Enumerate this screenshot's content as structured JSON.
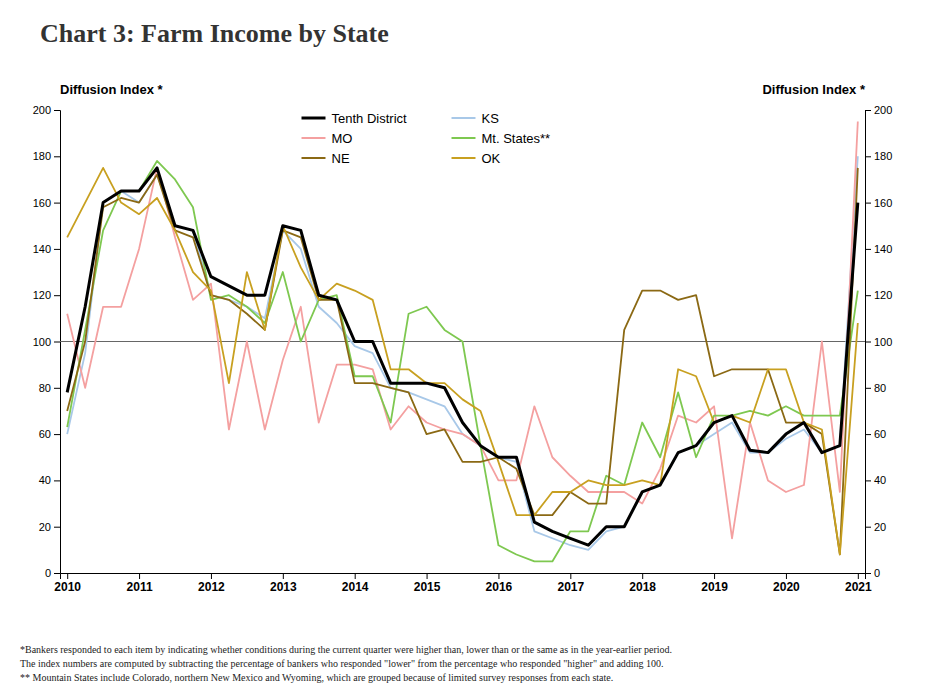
{
  "chart_data": {
    "type": "line",
    "title": "Chart 3: Farm Income by State",
    "ylabel": "Diffusion Index *",
    "y2label": "Diffusion Index *",
    "annotations": [
      "*Bankers responded to each item by indicating whether conditions during the current quarter were higher than, lower than or the same as in the year-earlier period.",
      "The index numbers are computed by subtracting the percentage of bankers who responded \"lower\" from the percentage who responded \"higher\" and adding 100.",
      "** Mountain States include Colorado, northern New Mexico and Wyoming, which are grouped because of limited survey responses from each state."
    ],
    "x": [
      2010,
      2010.25,
      2010.5,
      2010.75,
      2011,
      2011.25,
      2011.5,
      2011.75,
      2012,
      2012.25,
      2012.5,
      2012.75,
      2013,
      2013.25,
      2013.5,
      2013.75,
      2014,
      2014.25,
      2014.5,
      2014.75,
      2015,
      2015.25,
      2015.5,
      2015.75,
      2016,
      2016.25,
      2016.5,
      2016.75,
      2017,
      2017.25,
      2017.5,
      2017.75,
      2018,
      2018.25,
      2018.5,
      2018.75,
      2019,
      2019.25,
      2019.5,
      2019.75,
      2020,
      2020.25,
      2020.5,
      2020.75,
      2021
    ],
    "xlim": [
      2009.9,
      2021.1
    ],
    "xticks": [
      2010,
      2011,
      2012,
      2013,
      2014,
      2015,
      2016,
      2017,
      2018,
      2019,
      2020,
      2021
    ],
    "ylim": [
      0,
      200
    ],
    "yticks": [
      0,
      20,
      40,
      60,
      80,
      100,
      120,
      140,
      160,
      180,
      200
    ],
    "y2lim": [
      0,
      200
    ],
    "y2ticks": [
      0,
      20,
      40,
      60,
      80,
      100,
      120,
      140,
      160,
      180,
      200
    ],
    "hline": 100,
    "grid": false,
    "legend": "upper center",
    "series": [
      {
        "name": "Tenth District",
        "color": "#000000",
        "values": [
          78,
          115,
          160,
          165,
          165,
          175,
          150,
          148,
          128,
          124,
          120,
          120,
          150,
          148,
          120,
          118,
          100,
          100,
          82,
          82,
          82,
          80,
          65,
          55,
          50,
          50,
          22,
          18,
          15,
          12,
          20,
          20,
          35,
          38,
          52,
          55,
          65,
          68,
          53,
          52,
          60,
          65,
          52,
          55,
          160
        ]
      },
      {
        "name": "KS",
        "color": "#a8c8e8",
        "values": [
          60,
          95,
          160,
          165,
          160,
          172,
          150,
          148,
          120,
          118,
          115,
          110,
          148,
          140,
          115,
          108,
          98,
          95,
          80,
          78,
          75,
          72,
          60,
          55,
          50,
          48,
          18,
          15,
          12,
          10,
          18,
          20,
          35,
          38,
          52,
          55,
          60,
          65,
          52,
          52,
          58,
          62,
          52,
          55,
          180
        ]
      },
      {
        "name": "MO",
        "color": "#f4a0a0",
        "values": [
          112,
          80,
          115,
          115,
          140,
          175,
          145,
          118,
          125,
          62,
          100,
          62,
          92,
          115,
          65,
          90,
          90,
          88,
          62,
          72,
          65,
          62,
          60,
          55,
          40,
          40,
          72,
          50,
          42,
          35,
          35,
          35,
          30,
          45,
          68,
          65,
          72,
          15,
          65,
          40,
          35,
          38,
          100,
          35,
          195
        ]
      },
      {
        "name": "Mt. States**",
        "color": "#7ec850",
        "values": [
          63,
          105,
          148,
          165,
          165,
          178,
          170,
          158,
          118,
          120,
          115,
          108,
          130,
          100,
          118,
          120,
          85,
          85,
          65,
          112,
          115,
          105,
          100,
          55,
          12,
          8,
          5,
          5,
          18,
          18,
          42,
          38,
          65,
          50,
          78,
          50,
          68,
          68,
          70,
          68,
          72,
          68,
          68,
          68,
          122
        ]
      },
      {
        "name": "NE",
        "color": "#8B6914",
        "values": [
          70,
          100,
          158,
          162,
          160,
          172,
          148,
          145,
          120,
          118,
          112,
          105,
          148,
          145,
          118,
          118,
          82,
          82,
          80,
          78,
          60,
          62,
          48,
          48,
          50,
          45,
          25,
          25,
          35,
          30,
          30,
          105,
          122,
          122,
          118,
          120,
          85,
          88,
          88,
          88,
          65,
          65,
          60,
          8,
          175
        ]
      },
      {
        "name": "OK",
        "color": "#c8a020",
        "values": [
          145,
          160,
          175,
          160,
          155,
          162,
          148,
          130,
          122,
          82,
          130,
          105,
          150,
          132,
          118,
          125,
          122,
          118,
          88,
          88,
          82,
          82,
          75,
          70,
          48,
          25,
          25,
          35,
          35,
          40,
          38,
          38,
          40,
          38,
          88,
          85,
          65,
          68,
          65,
          88,
          88,
          65,
          62,
          8,
          108
        ]
      }
    ]
  }
}
